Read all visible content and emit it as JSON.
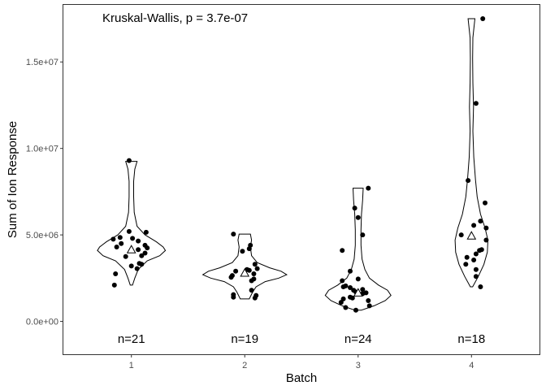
{
  "chart_data": {
    "type": "violin",
    "xlabel": "Batch",
    "ylabel": "Sum of Ion Response",
    "annotation": "Kruskal-Wallis, p = 3.7e-07",
    "categories": [
      "1",
      "2",
      "3",
      "4"
    ],
    "ylim": [
      -1900000,
      18300000
    ],
    "yticks": [
      {
        "value": 0,
        "label": "0.0e+00"
      },
      {
        "value": 5000000,
        "label": "5.0e+06"
      },
      {
        "value": 10000000,
        "label": "1.0e+07"
      },
      {
        "value": 15000000,
        "label": "1.5e+07"
      }
    ],
    "grid": false,
    "counts": [
      "n=21",
      "n=19",
      "n=24",
      "n=18"
    ],
    "counts_y": -1000000,
    "means": [
      4150000,
      2800000,
      1650000,
      4950000
    ],
    "violins": [
      {
        "y": [
          2100000,
          2500000,
          3000000,
          3500000,
          3800000,
          4100000,
          4300000,
          4600000,
          5000000,
          5500000,
          6300000,
          7200000,
          8100000,
          8800000,
          9250000
        ],
        "w": [
          0.01,
          0.03,
          0.06,
          0.14,
          0.25,
          0.3,
          0.28,
          0.22,
          0.12,
          0.05,
          0.025,
          0.02,
          0.02,
          0.03,
          0.05
        ]
      },
      {
        "y": [
          1300000,
          1700000,
          2000000,
          2300000,
          2500000,
          2700000,
          2900000,
          3100000,
          3400000,
          3800000,
          4300000,
          4700000,
          5050000
        ],
        "w": [
          0.04,
          0.07,
          0.1,
          0.18,
          0.3,
          0.37,
          0.32,
          0.22,
          0.11,
          0.06,
          0.05,
          0.06,
          0.05
        ]
      },
      {
        "y": [
          650000,
          900000,
          1200000,
          1500000,
          1800000,
          2100000,
          2500000,
          3000000,
          3600000,
          4400000,
          5300000,
          6200000,
          7000000,
          7700000
        ],
        "w": [
          0.03,
          0.14,
          0.24,
          0.29,
          0.26,
          0.18,
          0.1,
          0.06,
          0.035,
          0.025,
          0.025,
          0.03,
          0.04,
          0.045
        ]
      },
      {
        "y": [
          2000000,
          2600000,
          3300000,
          4000000,
          4700000,
          5400000,
          6200000,
          7200000,
          8200000,
          9500000,
          11000000,
          12400000,
          13800000,
          15200000,
          16400000,
          17500000
        ],
        "w": [
          0.01,
          0.06,
          0.11,
          0.14,
          0.145,
          0.12,
          0.08,
          0.05,
          0.035,
          0.02,
          0.012,
          0.018,
          0.012,
          0.01,
          0.012,
          0.03
        ]
      }
    ],
    "points": [
      {
        "batch": "1",
        "values": [
          9300000,
          5200000,
          5150000,
          4850000,
          4800000,
          4750000,
          4650000,
          4500000,
          4400000,
          4300000,
          4250000,
          4150000,
          3950000,
          3800000,
          3750000,
          3350000,
          3300000,
          3200000,
          3050000,
          2750000,
          2100000
        ],
        "jitter": [
          -0.02,
          -0.02,
          0.13,
          -0.1,
          0.01,
          -0.16,
          0.06,
          -0.09,
          0.12,
          -0.13,
          0.14,
          0.06,
          0.12,
          0.09,
          -0.05,
          0.07,
          0.09,
          0.0,
          0.05,
          -0.14,
          -0.15
        ]
      },
      {
        "batch": "2",
        "values": [
          5050000,
          4400000,
          4200000,
          4050000,
          3300000,
          3050000,
          3000000,
          2950000,
          2900000,
          2750000,
          2650000,
          2550000,
          2450000,
          2350000,
          1800000,
          1550000,
          1500000,
          1400000,
          1350000
        ],
        "jitter": [
          -0.1,
          0.05,
          0.04,
          -0.02,
          0.09,
          0.11,
          0.02,
          0.04,
          -0.08,
          0.08,
          -0.11,
          -0.12,
          0.08,
          0.06,
          0.06,
          -0.1,
          0.1,
          -0.1,
          0.09
        ]
      },
      {
        "batch": "3",
        "values": [
          7700000,
          6550000,
          6000000,
          5000000,
          4100000,
          2900000,
          2450000,
          2350000,
          2050000,
          2000000,
          1950000,
          1850000,
          1800000,
          1700000,
          1650000,
          1600000,
          1400000,
          1350000,
          1300000,
          1200000,
          1100000,
          900000,
          800000,
          650000
        ],
        "jitter": [
          0.09,
          -0.03,
          0.0,
          0.04,
          -0.14,
          -0.07,
          0.0,
          -0.14,
          -0.11,
          -0.13,
          -0.07,
          0.04,
          -0.04,
          -0.02,
          0.07,
          0.04,
          -0.07,
          -0.05,
          -0.13,
          0.09,
          -0.15,
          0.1,
          -0.11,
          -0.02
        ]
      },
      {
        "batch": "4",
        "values": [
          17500000,
          12600000,
          8150000,
          6850000,
          5800000,
          5550000,
          5400000,
          5000000,
          4700000,
          4150000,
          4100000,
          3900000,
          3700000,
          3550000,
          3300000,
          3000000,
          2600000,
          2000000
        ],
        "jitter": [
          0.1,
          0.04,
          -0.03,
          0.12,
          0.08,
          0.02,
          0.13,
          -0.09,
          0.13,
          0.09,
          0.07,
          0.04,
          -0.04,
          0.02,
          -0.05,
          0.04,
          0.04,
          0.08
        ]
      }
    ]
  }
}
